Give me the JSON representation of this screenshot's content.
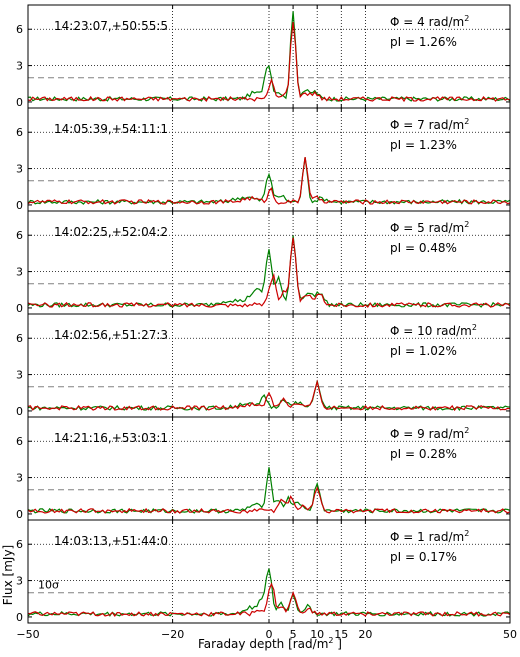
{
  "figure": {
    "xlabel": "Faraday depth [rad/m",
    "xlabel_sup": "2",
    "xlabel_tail": " ]",
    "ylabel": "Flux [mJy]",
    "sigma_label": "10σ",
    "phi_prefix": "Φ = ",
    "phi_unit": " rad/m",
    "phi_unit_sup": "2",
    "pi_prefix": "pI = "
  },
  "chart_data": {
    "type": "line",
    "xlim": [
      -50,
      50
    ],
    "ylim": [
      -0.5,
      8
    ],
    "x_ticks": [
      -50,
      -20,
      0,
      5,
      10,
      15,
      20,
      50
    ],
    "y_ticks": [
      0,
      3,
      6
    ],
    "vertical_dotted_lines": [
      -20,
      0,
      5,
      10,
      15,
      20
    ],
    "horizontal_dotted_lines": [
      3,
      6
    ],
    "threshold_10sigma": 2,
    "colors": {
      "green": "#008000",
      "red": "#cc0000",
      "threshold": "#808080",
      "grid": "#000000"
    },
    "panels": [
      {
        "label": "14:23:07,+50:55:5",
        "phi": "4",
        "pi": "1.26%",
        "green_peaks": [
          [
            -0.2,
            2.9,
            0.7
          ],
          [
            5,
            7.2,
            0.55
          ],
          [
            7.5,
            0.7,
            0.7
          ],
          [
            9.5,
            0.6,
            0.7
          ],
          [
            -3,
            0.5,
            1.2
          ],
          [
            2,
            0.6,
            0.6
          ]
        ],
        "red_peaks": [
          [
            0.5,
            1.6,
            0.5
          ],
          [
            3,
            0.5,
            0.5
          ],
          [
            5,
            6.5,
            0.55
          ],
          [
            7.5,
            0.5,
            0.7
          ],
          [
            9.5,
            0.5,
            0.7
          ]
        ]
      },
      {
        "label": "14:05:39,+54:11:1",
        "phi": "7",
        "pi": "1.23%",
        "green_peaks": [
          [
            0,
            2.3,
            0.6
          ],
          [
            7.5,
            3.6,
            0.5
          ],
          [
            -5,
            0.4,
            2
          ],
          [
            2.5,
            0.5,
            0.8
          ],
          [
            11,
            0.3,
            1
          ]
        ],
        "red_peaks": [
          [
            0.3,
            1.1,
            0.5
          ],
          [
            7.5,
            3.8,
            0.5
          ],
          [
            -4,
            0.3,
            1.5
          ],
          [
            10,
            0.3,
            1
          ]
        ]
      },
      {
        "label": "14:02:25,+52:04:2",
        "phi": "5",
        "pi": "0.48%",
        "green_peaks": [
          [
            0,
            4.3,
            0.6
          ],
          [
            5,
            5.7,
            0.6
          ],
          [
            -2.5,
            1.2,
            1.5
          ],
          [
            2,
            2.2,
            0.6
          ],
          [
            8,
            1.0,
            1
          ],
          [
            10.5,
            1.0,
            0.8
          ],
          [
            -8,
            0.4,
            2
          ]
        ],
        "red_peaks": [
          [
            1,
            2.4,
            0.5
          ],
          [
            5,
            5.4,
            0.6
          ],
          [
            0,
            1.0,
            0.5
          ],
          [
            3,
            1.2,
            0.5
          ],
          [
            8,
            0.7,
            1
          ],
          [
            10.5,
            0.8,
            0.8
          ]
        ]
      },
      {
        "label": "14:02:56,+51:27:3",
        "phi": "10",
        "pi": "1.02%",
        "green_peaks": [
          [
            -1,
            0.9,
            0.7
          ],
          [
            3,
            0.8,
            0.7
          ],
          [
            10,
            2.2,
            0.6
          ],
          [
            -5,
            0.4,
            1.5
          ],
          [
            6,
            0.4,
            1
          ]
        ],
        "red_peaks": [
          [
            0,
            1.2,
            0.6
          ],
          [
            3,
            0.8,
            0.6
          ],
          [
            10,
            2.1,
            0.6
          ],
          [
            -4,
            0.3,
            1.5
          ],
          [
            6,
            0.3,
            1
          ]
        ]
      },
      {
        "label": "14:21:16,+53:03:1",
        "phi": "9",
        "pi": "0.28%",
        "green_peaks": [
          [
            0,
            3.5,
            0.55
          ],
          [
            2,
            0.9,
            0.6
          ],
          [
            4,
            1.0,
            0.6
          ],
          [
            6,
            0.8,
            0.7
          ],
          [
            10,
            2.3,
            0.6
          ],
          [
            -3,
            0.5,
            1.2
          ]
        ],
        "red_peaks": [
          [
            2.5,
            1.0,
            0.6
          ],
          [
            4.5,
            1.1,
            0.6
          ],
          [
            10,
            1.9,
            0.6
          ],
          [
            7,
            0.5,
            0.7
          ]
        ]
      },
      {
        "label": "14:03:13,+51:44:0",
        "phi": "1",
        "pi": "0.17%",
        "green_peaks": [
          [
            0,
            3.4,
            0.6
          ],
          [
            -1.5,
            1.2,
            0.8
          ],
          [
            5,
            1.6,
            0.6
          ],
          [
            2.5,
            0.9,
            0.6
          ],
          [
            8,
            0.6,
            0.8
          ],
          [
            -4,
            0.5,
            1.2
          ]
        ],
        "red_peaks": [
          [
            0.5,
            2.6,
            0.6
          ],
          [
            5,
            1.7,
            0.6
          ],
          [
            2.5,
            0.6,
            0.6
          ],
          [
            -2,
            0.4,
            0.8
          ],
          [
            8,
            0.4,
            0.8
          ]
        ]
      }
    ]
  }
}
